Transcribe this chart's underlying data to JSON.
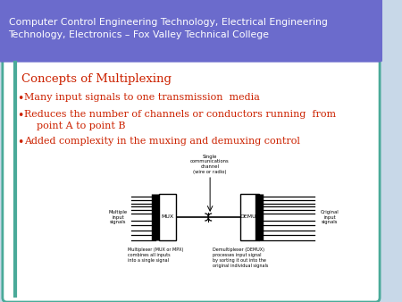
{
  "header_text": "Computer Control Engineering Technology, Electrical Engineering\nTechnology, Electronics – Fox Valley Technical College",
  "header_bg": "#6b6bcc",
  "slide_bg": "#c8d8e8",
  "border_color": "#4aaa99",
  "title_text": "Concepts of Multiplexing",
  "title_color": "#cc2200",
  "bullet_color": "#cc2200",
  "bullets": [
    "Many input signals to one transmission  media",
    "Reduces the number of channels or conductors running  from\n    point A to point B",
    "Added complexity in the muxing and demuxing control"
  ],
  "diagram_caption_left": "Multiplexer (MUX or MPX)\ncombines all inputs\ninto a single signal",
  "diagram_caption_right": "Demultiplexer (DEMUX)\nprocesses input signal\nby sorting it out into the\noriginal individual signals",
  "diagram_top_label": "Single\ncommunications\nchannel\n(wire or radio)",
  "diagram_left_label": "Multiple\ninput\nsignals",
  "diagram_right_label": "Original\ninput\nsignals",
  "mux_label": "MUX",
  "demux_label": "DEMUX"
}
